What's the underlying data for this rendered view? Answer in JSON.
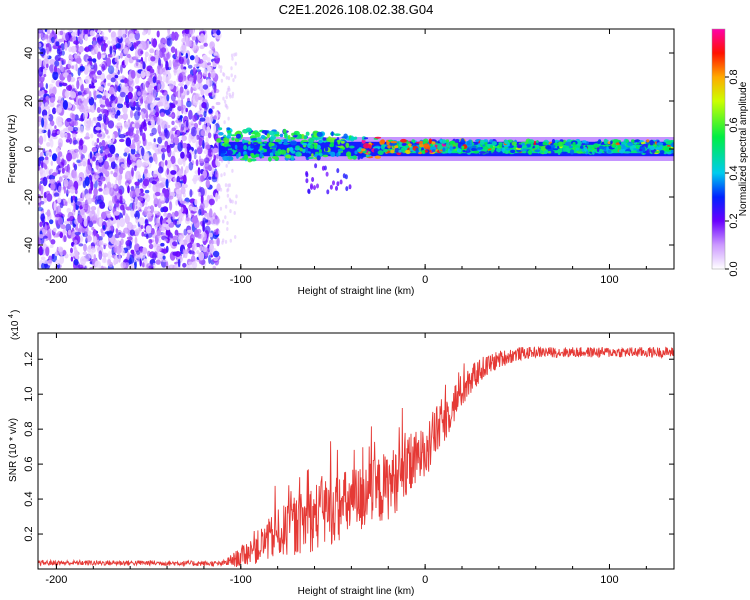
{
  "chart_data": [
    {
      "type": "heatmap",
      "title": "C2E1.2026.108.02.38.G04",
      "xlabel": "Height of straight line (km)",
      "ylabel": "Frequency (Hz)",
      "xlim": [
        -210,
        135
      ],
      "ylim": [
        -50,
        50
      ],
      "xticks": [
        -200,
        -100,
        0,
        100
      ],
      "yticks": [
        -40,
        -20,
        0,
        20,
        40
      ],
      "xtick_labels": [
        "-200",
        "-100",
        "0",
        "100"
      ],
      "ytick_labels": [
        "-40",
        "-20",
        "0",
        "20",
        "40"
      ],
      "colorbar": {
        "label": "Normalized spectral amplitude",
        "range": [
          0,
          1
        ],
        "ticks": [
          0,
          0.2,
          0.4,
          0.6,
          0.8
        ],
        "tick_labels": [
          "0.0",
          "0.2",
          "0.4",
          "0.6",
          "0.8"
        ]
      },
      "description_regions": [
        {
          "x_range": [
            -210,
            -112
          ],
          "freq_range": [
            -50,
            50
          ],
          "amplitude": 0.15,
          "pattern": "scattered noise"
        },
        {
          "x_range": [
            -112,
            135
          ],
          "freq_center": 0,
          "freq_halfwidth": 5,
          "amplitude_range": [
            0.3,
            1.0
          ],
          "pattern": "narrow carrier band"
        }
      ]
    },
    {
      "type": "line",
      "title": "",
      "xlabel": "Height of straight line (km)",
      "ylabel": "SNR (10 * v/v)",
      "y_scale_label": "(x10",
      "y_scale_exponent": "4",
      "xlim": [
        -210,
        135
      ],
      "ylim": [
        0,
        1.35
      ],
      "xticks": [
        -200,
        -100,
        0,
        100
      ],
      "yticks": [
        0.2,
        0.4,
        0.6,
        0.8,
        1.0,
        1.2
      ],
      "xtick_labels": [
        "-200",
        "-100",
        "0",
        "100"
      ],
      "ytick_labels": [
        "0.2",
        "0.4",
        "0.6",
        "0.8",
        "1.0",
        "1.2"
      ],
      "series": [
        {
          "name": "SNR",
          "color": "#e53935",
          "x": [
            -210,
            -150,
            -110,
            -102,
            -90,
            -80,
            -70,
            -60,
            -50,
            -40,
            -30,
            -20,
            -10,
            0,
            10,
            20,
            30,
            40,
            50,
            60,
            70,
            80,
            90,
            100,
            110,
            120,
            135
          ],
          "y": [
            0.035,
            0.035,
            0.03,
            0.06,
            0.13,
            0.2,
            0.25,
            0.3,
            0.34,
            0.38,
            0.42,
            0.48,
            0.56,
            0.68,
            0.85,
            1.02,
            1.14,
            1.2,
            1.23,
            1.24,
            1.24,
            1.24,
            1.24,
            1.24,
            1.24,
            1.24,
            1.24
          ],
          "noise": [
            0.015,
            0.015,
            0.015,
            0.05,
            0.1,
            0.14,
            0.17,
            0.2,
            0.2,
            0.2,
            0.2,
            0.2,
            0.18,
            0.16,
            0.14,
            0.1,
            0.07,
            0.05,
            0.04,
            0.03,
            0.03,
            0.03,
            0.03,
            0.03,
            0.03,
            0.03,
            0.03
          ]
        }
      ]
    }
  ]
}
